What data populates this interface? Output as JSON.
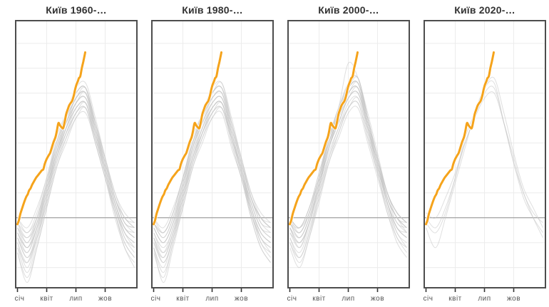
{
  "page": {
    "background": "#ffffff"
  },
  "chart_data": {
    "type": "line",
    "layout": "small-multiples",
    "description": "Four panels of smoothed daily temperature curves for Kyiv by decade; gray lines are individual years, orange line is the current partial year ending in late July",
    "x_domain_months": [
      0,
      12
    ],
    "x_ticks_months": [
      0,
      3,
      6,
      9
    ],
    "x_tick_labels": [
      "січ",
      "квіт",
      "лип",
      "жов"
    ],
    "y_domain": [
      -14.2,
      39.7
    ],
    "y_gridlines": [
      35,
      30,
      25,
      20,
      15,
      10,
      5,
      0,
      -5,
      -10
    ],
    "zero_line_value": 0,
    "grid_on": true,
    "legend": "none",
    "colors": {
      "grid": "#ececec",
      "zero_line": "#9a9a9a",
      "border": "#4d4d4d",
      "gray_series": "#c4c4c4",
      "highlight": "#f5a31b",
      "highlight_casing": "#ffffff",
      "title": "#333333",
      "axis_label": "#555555",
      "tick": "#333333"
    },
    "highlight_series": {
      "name": "current-year",
      "months": [
        0,
        0.15,
        0.3,
        0.5,
        0.7,
        0.9,
        1.05,
        1.2,
        1.35,
        1.5,
        1.7,
        1.9,
        2.1,
        2.3,
        2.5,
        2.65,
        2.8,
        3.0,
        3.2,
        3.35,
        3.5,
        3.7,
        3.9,
        4.05,
        4.2,
        4.35,
        4.55,
        4.7,
        4.85,
        5.0,
        5.15,
        5.3,
        5.45,
        5.6,
        5.75,
        5.9,
        6.05,
        6.2,
        6.3,
        6.45,
        6.6,
        6.75,
        6.85,
        6.95
      ],
      "values": [
        -1.3,
        -0.5,
        0.8,
        2.0,
        3.2,
        4.2,
        4.7,
        5.5,
        5.9,
        6.6,
        7.3,
        8.0,
        8.5,
        9.0,
        9.5,
        9.7,
        10.8,
        11.8,
        12.5,
        13.0,
        13.9,
        15.2,
        16.2,
        17.5,
        19.0,
        18.6,
        18.1,
        18.0,
        19.3,
        20.8,
        21.7,
        22.5,
        23.0,
        23.4,
        24.3,
        25.6,
        26.7,
        27.4,
        28.0,
        28.4,
        30.0,
        31.3,
        32.2,
        33.2
      ]
    },
    "panels": [
      {
        "title": "Київ 1960-…",
        "years_monthly_values": [
          [
            -3,
            -7,
            -2,
            6,
            13,
            18,
            22,
            23,
            17,
            10,
            3,
            -2,
            -4
          ],
          [
            -5,
            -9,
            -4,
            4,
            12,
            17,
            21,
            22,
            16,
            9,
            2,
            -4,
            -6
          ],
          [
            -1,
            -4,
            0,
            7,
            14,
            19,
            23,
            24,
            18,
            11,
            4,
            -1,
            -2
          ],
          [
            -6,
            -11,
            -5,
            3,
            11,
            16,
            20,
            22,
            15,
            8,
            1,
            -5,
            -8
          ],
          [
            -2,
            -5,
            -1,
            6,
            13,
            19,
            24,
            25,
            18,
            10,
            3,
            -2,
            -3
          ],
          [
            -4,
            -8,
            -3,
            5,
            12,
            18,
            22,
            23,
            16,
            9,
            2,
            -3,
            -5
          ],
          [
            0,
            -3,
            1,
            8,
            15,
            20,
            24,
            25,
            19,
            12,
            5,
            0,
            -1
          ],
          [
            -7,
            -12,
            -6,
            2,
            10,
            16,
            21,
            22,
            15,
            8,
            1,
            -6,
            -9
          ],
          [
            -2,
            -6,
            -1,
            6,
            14,
            20,
            25,
            26,
            19,
            11,
            4,
            -1,
            -3
          ],
          [
            -4,
            -7,
            -2,
            5,
            13,
            18,
            23,
            24,
            17,
            10,
            3,
            -3,
            -6
          ],
          [
            -1,
            -5,
            0,
            7,
            15,
            21,
            26,
            27,
            20,
            12,
            4,
            0,
            -2
          ],
          [
            -5,
            -10,
            -4,
            3,
            11,
            17,
            22,
            23,
            16,
            9,
            2,
            -4,
            -7
          ],
          [
            -3,
            -6,
            -2,
            6,
            13,
            19,
            24,
            25,
            18,
            10,
            3,
            -2,
            -4
          ],
          [
            -6,
            -9,
            -3,
            4,
            12,
            17,
            21,
            23,
            16,
            9,
            1,
            -5,
            -8
          ],
          [
            0,
            -2,
            2,
            8,
            16,
            21,
            25,
            26,
            19,
            12,
            5,
            1,
            -1
          ],
          [
            -4,
            -8,
            -4,
            4,
            12,
            18,
            23,
            24,
            17,
            9,
            2,
            -3,
            -5
          ],
          [
            -2,
            -4,
            -1,
            7,
            14,
            20,
            25,
            26,
            18,
            11,
            4,
            -1,
            -2
          ],
          [
            -7,
            -13,
            -6,
            2,
            10,
            15,
            20,
            21,
            15,
            8,
            0,
            -6,
            -10
          ],
          [
            -3,
            -6,
            -2,
            5,
            13,
            19,
            23,
            25,
            17,
            10,
            3,
            -2,
            -4
          ],
          [
            -1,
            -3,
            0,
            7,
            15,
            20,
            24,
            26,
            19,
            11,
            4,
            0,
            -2
          ]
        ]
      },
      {
        "title": "Київ 1980-…",
        "years_monthly_values": [
          [
            -2,
            -5,
            -1,
            6,
            14,
            19,
            23,
            24,
            17,
            10,
            3,
            -2,
            -4
          ],
          [
            -6,
            -10,
            -4,
            3,
            11,
            17,
            21,
            22,
            16,
            9,
            1,
            -5,
            -7
          ],
          [
            0,
            -3,
            1,
            8,
            15,
            20,
            25,
            26,
            19,
            11,
            4,
            0,
            -1
          ],
          [
            -4,
            -8,
            -3,
            5,
            12,
            18,
            22,
            23,
            16,
            9,
            2,
            -3,
            -5
          ],
          [
            -1,
            -4,
            0,
            7,
            14,
            20,
            24,
            25,
            18,
            11,
            4,
            -1,
            -2
          ],
          [
            -7,
            -12,
            -5,
            2,
            10,
            16,
            20,
            22,
            15,
            8,
            0,
            -6,
            -9
          ],
          [
            -3,
            -6,
            -2,
            6,
            13,
            19,
            23,
            24,
            17,
            10,
            3,
            -2,
            -4
          ],
          [
            -5,
            -9,
            -4,
            4,
            12,
            17,
            22,
            23,
            16,
            9,
            1,
            -4,
            -6
          ],
          [
            -1,
            -3,
            1,
            8,
            15,
            21,
            25,
            27,
            19,
            12,
            5,
            0,
            -2
          ],
          [
            -4,
            -7,
            -2,
            5,
            13,
            18,
            23,
            24,
            17,
            10,
            2,
            -3,
            -5
          ],
          [
            -2,
            -5,
            -1,
            7,
            14,
            20,
            24,
            25,
            18,
            11,
            4,
            -1,
            -3
          ],
          [
            -6,
            -11,
            -5,
            3,
            11,
            16,
            21,
            22,
            15,
            8,
            1,
            -5,
            -8
          ],
          [
            0,
            -2,
            2,
            8,
            16,
            21,
            26,
            27,
            20,
            12,
            5,
            1,
            -1
          ],
          [
            -3,
            -7,
            -3,
            5,
            12,
            18,
            22,
            23,
            16,
            10,
            2,
            -3,
            -5
          ],
          [
            -5,
            -8,
            -3,
            4,
            12,
            17,
            21,
            23,
            16,
            9,
            1,
            -4,
            -7
          ],
          [
            -1,
            -4,
            0,
            7,
            15,
            20,
            25,
            26,
            18,
            11,
            4,
            0,
            -2
          ],
          [
            -4,
            -9,
            -4,
            4,
            11,
            17,
            22,
            23,
            16,
            9,
            2,
            -4,
            -6
          ],
          [
            -2,
            -5,
            -1,
            6,
            14,
            19,
            24,
            25,
            17,
            10,
            3,
            -2,
            -3
          ],
          [
            -6,
            -13,
            -6,
            2,
            10,
            15,
            20,
            21,
            14,
            8,
            0,
            -6,
            -9
          ],
          [
            -1,
            -3,
            1,
            8,
            15,
            21,
            25,
            26,
            19,
            12,
            4,
            0,
            -2
          ]
        ]
      },
      {
        "title": "Київ 2000-…",
        "years_monthly_values": [
          [
            -1,
            -3,
            1,
            8,
            15,
            20,
            25,
            26,
            19,
            11,
            4,
            0,
            -2
          ],
          [
            -3,
            -6,
            -1,
            6,
            14,
            19,
            24,
            25,
            18,
            10,
            3,
            -2,
            -4
          ],
          [
            0,
            -2,
            2,
            9,
            16,
            21,
            26,
            27,
            20,
            12,
            5,
            1,
            -1
          ],
          [
            -5,
            -8,
            -3,
            4,
            12,
            18,
            22,
            24,
            17,
            9,
            2,
            -4,
            -6
          ],
          [
            -1,
            -4,
            0,
            7,
            15,
            20,
            25,
            26,
            19,
            11,
            4,
            -1,
            -2
          ],
          [
            -2,
            -5,
            -1,
            7,
            14,
            21,
            27,
            28,
            20,
            12,
            4,
            0,
            -3
          ],
          [
            -4,
            -7,
            -2,
            5,
            13,
            18,
            23,
            24,
            17,
            10,
            3,
            -3,
            -5
          ],
          [
            0,
            -3,
            1,
            8,
            16,
            22,
            26,
            27,
            20,
            12,
            5,
            0,
            -1
          ],
          [
            -2,
            -6,
            -1,
            6,
            14,
            19,
            24,
            25,
            18,
            11,
            3,
            -2,
            -4
          ],
          [
            -1,
            -2,
            2,
            9,
            16,
            22,
            31,
            28,
            21,
            13,
            5,
            1,
            -1
          ],
          [
            -5,
            -9,
            -4,
            4,
            11,
            17,
            22,
            23,
            16,
            9,
            1,
            -4,
            -7
          ],
          [
            -1,
            -4,
            0,
            7,
            15,
            21,
            26,
            27,
            19,
            11,
            4,
            0,
            -2
          ],
          [
            -3,
            -5,
            -1,
            6,
            14,
            20,
            25,
            26,
            18,
            10,
            3,
            -2,
            -3
          ],
          [
            0,
            -2,
            2,
            8,
            16,
            21,
            26,
            28,
            20,
            12,
            5,
            1,
            -1
          ],
          [
            -4,
            -8,
            -3,
            5,
            12,
            17,
            22,
            23,
            16,
            9,
            2,
            -3,
            -6
          ],
          [
            -1,
            -3,
            1,
            8,
            15,
            21,
            25,
            27,
            19,
            12,
            4,
            0,
            -2
          ],
          [
            -2,
            -4,
            0,
            7,
            14,
            20,
            24,
            26,
            18,
            11,
            3,
            -1,
            -3
          ],
          [
            -6,
            -10,
            -4,
            3,
            11,
            16,
            21,
            22,
            15,
            8,
            1,
            -5,
            -8
          ],
          [
            0,
            -2,
            1,
            8,
            16,
            22,
            27,
            28,
            20,
            12,
            5,
            1,
            -1
          ],
          [
            -2,
            -5,
            -1,
            6,
            14,
            19,
            24,
            25,
            18,
            10,
            3,
            -2,
            -4
          ]
        ]
      },
      {
        "title": "Київ 2020-…",
        "years_monthly_values": [
          [
            1,
            0,
            4,
            9,
            15,
            20,
            24,
            25,
            19,
            12,
            5,
            1,
            -1
          ],
          [
            -2,
            -6,
            0,
            7,
            14,
            21,
            26,
            27,
            19,
            11,
            4,
            0,
            -3
          ],
          [
            0,
            -2,
            2,
            8,
            15,
            20,
            25,
            26,
            19,
            11,
            5,
            0,
            -4
          ],
          [
            -1,
            -3,
            1,
            8,
            16,
            21,
            26,
            28,
            21,
            13,
            6,
            2,
            -2
          ]
        ]
      }
    ]
  }
}
